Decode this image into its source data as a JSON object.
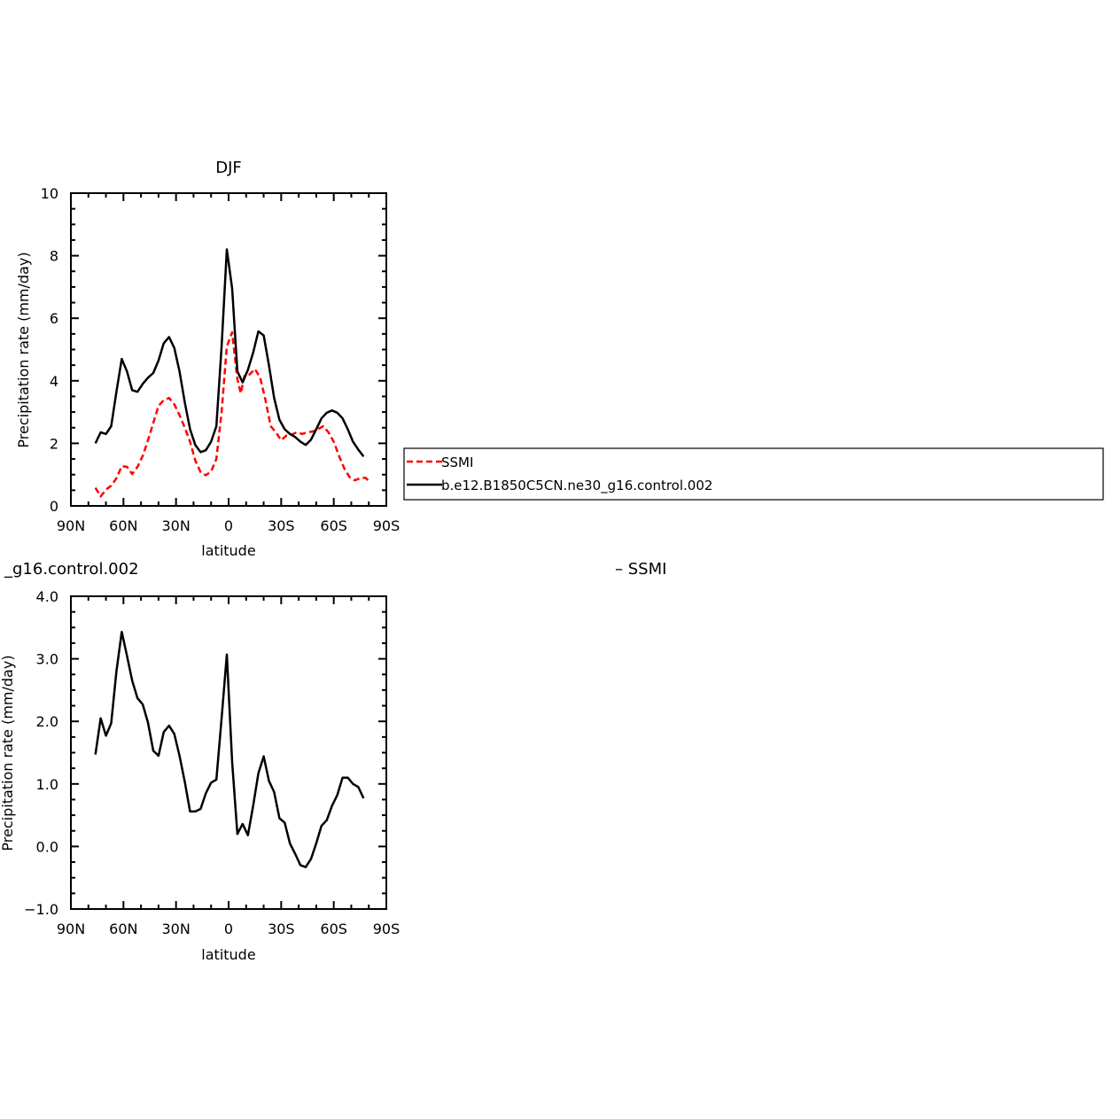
{
  "chart_data": [
    {
      "type": "line",
      "title": "DJF",
      "xlabel": "latitude",
      "ylabel": "Precipitation rate (mm/day)",
      "xlim": [
        90,
        -90
      ],
      "ylim": [
        0,
        10
      ],
      "x_ticks": [
        {
          "value": 90,
          "label": "90N"
        },
        {
          "value": 60,
          "label": "60N"
        },
        {
          "value": 30,
          "label": "30N"
        },
        {
          "value": 0,
          "label": "0"
        },
        {
          "value": -30,
          "label": "30S"
        },
        {
          "value": -60,
          "label": "60S"
        },
        {
          "value": -90,
          "label": "90S"
        }
      ],
      "y_ticks": [
        {
          "value": 0,
          "label": "0"
        },
        {
          "value": 2,
          "label": "2"
        },
        {
          "value": 4,
          "label": "4"
        },
        {
          "value": 6,
          "label": "6"
        },
        {
          "value": 8,
          "label": "8"
        },
        {
          "value": 10,
          "label": "10"
        }
      ],
      "legend_position": "right, outside plot",
      "series": [
        {
          "name": "SSMI",
          "color": "#ff0000",
          "dash": true,
          "points": [
            [
              76,
              0.58
            ],
            [
              73,
              0.3
            ],
            [
              70,
              0.52
            ],
            [
              67,
              0.65
            ],
            [
              64,
              0.88
            ],
            [
              61,
              1.27
            ],
            [
              58,
              1.25
            ],
            [
              55,
              1.02
            ],
            [
              52,
              1.25
            ],
            [
              49,
              1.6
            ],
            [
              46,
              2.1
            ],
            [
              43,
              2.65
            ],
            [
              40,
              3.2
            ],
            [
              37,
              3.38
            ],
            [
              34,
              3.45
            ],
            [
              31,
              3.25
            ],
            [
              28,
              2.9
            ],
            [
              25,
              2.5
            ],
            [
              22,
              2.05
            ],
            [
              19,
              1.45
            ],
            [
              16,
              1.08
            ],
            [
              13,
              0.98
            ],
            [
              10,
              1.1
            ],
            [
              7,
              1.5
            ],
            [
              4,
              3.0
            ],
            [
              1,
              5.1
            ],
            [
              -2,
              5.55
            ],
            [
              -5,
              4.05
            ],
            [
              -7,
              3.6
            ],
            [
              -9,
              4.15
            ],
            [
              -12,
              4.2
            ],
            [
              -15,
              4.38
            ],
            [
              -18,
              4.1
            ],
            [
              -21,
              3.4
            ],
            [
              -24,
              2.55
            ],
            [
              -27,
              2.35
            ],
            [
              -30,
              2.1
            ],
            [
              -33,
              2.25
            ],
            [
              -36,
              2.28
            ],
            [
              -39,
              2.35
            ],
            [
              -42,
              2.3
            ],
            [
              -45,
              2.35
            ],
            [
              -48,
              2.38
            ],
            [
              -51,
              2.45
            ],
            [
              -54,
              2.55
            ],
            [
              -57,
              2.35
            ],
            [
              -60,
              2.05
            ],
            [
              -63,
              1.6
            ],
            [
              -66,
              1.2
            ],
            [
              -69,
              0.92
            ],
            [
              -72,
              0.82
            ],
            [
              -75,
              0.88
            ],
            [
              -78,
              0.9
            ],
            [
              -81,
              0.75
            ]
          ]
        },
        {
          "name": "b.e12.B1850C5CN.ne30_g16.control.002",
          "color": "#000000",
          "dash": false,
          "points": [
            [
              76,
              2.0
            ],
            [
              73,
              2.35
            ],
            [
              70,
              2.3
            ],
            [
              67,
              2.55
            ],
            [
              64,
              3.65
            ],
            [
              61,
              4.7
            ],
            [
              58,
              4.3
            ],
            [
              55,
              3.7
            ],
            [
              52,
              3.65
            ],
            [
              49,
              3.9
            ],
            [
              46,
              4.1
            ],
            [
              43,
              4.25
            ],
            [
              40,
              4.65
            ],
            [
              37,
              5.2
            ],
            [
              34,
              5.4
            ],
            [
              31,
              5.05
            ],
            [
              28,
              4.3
            ],
            [
              25,
              3.3
            ],
            [
              22,
              2.45
            ],
            [
              19,
              1.95
            ],
            [
              16,
              1.72
            ],
            [
              13,
              1.78
            ],
            [
              10,
              2.05
            ],
            [
              7,
              2.55
            ],
            [
              4,
              5.1
            ],
            [
              1,
              8.2
            ],
            [
              -2,
              6.95
            ],
            [
              -5,
              4.3
            ],
            [
              -8,
              3.95
            ],
            [
              -11,
              4.35
            ],
            [
              -14,
              4.9
            ],
            [
              -17,
              5.58
            ],
            [
              -20,
              5.45
            ],
            [
              -23,
              4.5
            ],
            [
              -26,
              3.45
            ],
            [
              -29,
              2.75
            ],
            [
              -32,
              2.45
            ],
            [
              -35,
              2.3
            ],
            [
              -38,
              2.2
            ],
            [
              -41,
              2.05
            ],
            [
              -44,
              1.95
            ],
            [
              -47,
              2.12
            ],
            [
              -50,
              2.45
            ],
            [
              -53,
              2.8
            ],
            [
              -56,
              2.98
            ],
            [
              -59,
              3.05
            ],
            [
              -62,
              2.98
            ],
            [
              -65,
              2.8
            ],
            [
              -68,
              2.45
            ],
            [
              -71,
              2.05
            ],
            [
              -74,
              1.8
            ],
            [
              -77,
              1.58
            ]
          ]
        }
      ]
    },
    {
      "type": "line",
      "title": "_g16.control.002",
      "title_right": "– SSMI",
      "xlabel": "latitude",
      "ylabel": "Precipitation rate (mm/day)",
      "xlim": [
        90,
        -90
      ],
      "ylim": [
        -1.0,
        4.0
      ],
      "x_ticks": [
        {
          "value": 90,
          "label": "90N"
        },
        {
          "value": 60,
          "label": "60N"
        },
        {
          "value": 30,
          "label": "30N"
        },
        {
          "value": 0,
          "label": "0"
        },
        {
          "value": -30,
          "label": "30S"
        },
        {
          "value": -60,
          "label": "60S"
        },
        {
          "value": -90,
          "label": "90S"
        }
      ],
      "y_ticks": [
        {
          "value": -1.0,
          "label": "−1.0"
        },
        {
          "value": 0.0,
          "label": "0.0"
        },
        {
          "value": 1.0,
          "label": "1.0"
        },
        {
          "value": 2.0,
          "label": "2.0"
        },
        {
          "value": 3.0,
          "label": "3.0"
        },
        {
          "value": 4.0,
          "label": "4.0"
        }
      ],
      "series": [
        {
          "color": "#000000",
          "dash": false,
          "points": [
            [
              76,
              1.47
            ],
            [
              73,
              2.05
            ],
            [
              70,
              1.77
            ],
            [
              67,
              1.97
            ],
            [
              64,
              2.8
            ],
            [
              61,
              3.43
            ],
            [
              58,
              3.05
            ],
            [
              55,
              2.65
            ],
            [
              52,
              2.37
            ],
            [
              49,
              2.27
            ],
            [
              46,
              1.98
            ],
            [
              43,
              1.53
            ],
            [
              40,
              1.45
            ],
            [
              37,
              1.83
            ],
            [
              34,
              1.93
            ],
            [
              31,
              1.8
            ],
            [
              28,
              1.45
            ],
            [
              25,
              1.03
            ],
            [
              22,
              0.56
            ],
            [
              19,
              0.56
            ],
            [
              16,
              0.6
            ],
            [
              13,
              0.85
            ],
            [
              10,
              1.02
            ],
            [
              7,
              1.07
            ],
            [
              4,
              2.05
            ],
            [
              1,
              3.07
            ],
            [
              -2,
              1.35
            ],
            [
              -5,
              0.2
            ],
            [
              -8,
              0.36
            ],
            [
              -11,
              0.18
            ],
            [
              -14,
              0.65
            ],
            [
              -17,
              1.17
            ],
            [
              -20,
              1.44
            ],
            [
              -23,
              1.05
            ],
            [
              -26,
              0.87
            ],
            [
              -29,
              0.45
            ],
            [
              -32,
              0.38
            ],
            [
              -35,
              0.05
            ],
            [
              -38,
              -0.12
            ],
            [
              -41,
              -0.3
            ],
            [
              -44,
              -0.33
            ],
            [
              -47,
              -0.2
            ],
            [
              -50,
              0.05
            ],
            [
              -53,
              0.33
            ],
            [
              -56,
              0.42
            ],
            [
              -59,
              0.65
            ],
            [
              -62,
              0.82
            ],
            [
              -65,
              1.1
            ],
            [
              -68,
              1.1
            ],
            [
              -71,
              1.0
            ],
            [
              -74,
              0.95
            ],
            [
              -77,
              0.77
            ]
          ]
        }
      ]
    }
  ]
}
